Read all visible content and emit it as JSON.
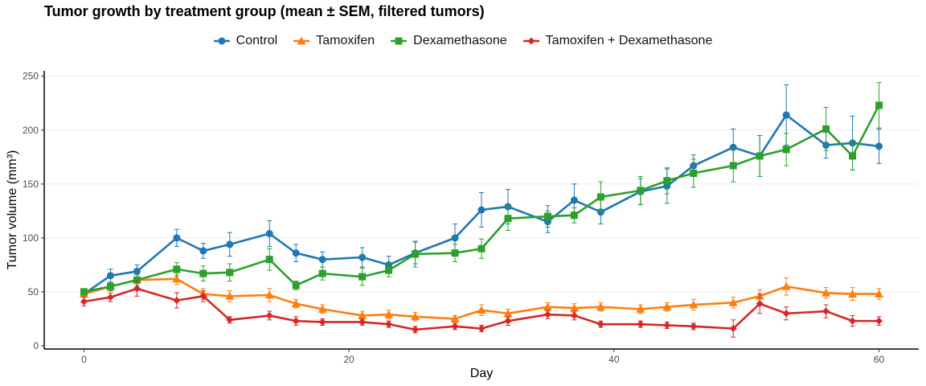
{
  "chart_data": {
    "type": "line",
    "title": "Tumor growth by treatment group (mean ± SEM, filtered tumors)",
    "xlabel": "Day",
    "ylabel": "Tumor volume (mm³)",
    "xlim": [
      -3,
      63
    ],
    "ylim": [
      -3,
      255
    ],
    "xticks": [
      0,
      20,
      40,
      60
    ],
    "yticks": [
      0,
      50,
      100,
      150,
      200,
      250
    ],
    "grid": "horizontal",
    "legend_position": "top",
    "series": [
      {
        "name": "Control",
        "color": "#1f77b4",
        "marker": "circle",
        "x": [
          0,
          2,
          4,
          7,
          9,
          11,
          14,
          16,
          18,
          21,
          23,
          25,
          28,
          30,
          32,
          35,
          37,
          39,
          42,
          44,
          46,
          49,
          51,
          53,
          56,
          58,
          60
        ],
        "y": [
          48,
          65,
          69,
          100,
          88,
          94,
          104,
          86,
          80,
          82,
          75,
          86,
          100,
          126,
          129,
          115,
          135,
          124,
          143,
          148,
          167,
          184,
          176,
          214,
          186,
          188,
          185
        ],
        "sem": [
          3,
          6,
          6,
          8,
          7,
          11,
          12,
          8,
          7,
          9,
          8,
          10,
          13,
          16,
          16,
          10,
          15,
          11,
          12,
          16,
          10,
          17,
          19,
          28,
          12,
          25,
          16
        ]
      },
      {
        "name": "Tamoxifen",
        "color": "#ff7f0e",
        "marker": "triangle",
        "x": [
          0,
          2,
          4,
          7,
          9,
          11,
          14,
          16,
          18,
          21,
          23,
          25,
          28,
          30,
          32,
          35,
          37,
          39,
          42,
          44,
          46,
          49,
          51,
          53,
          56,
          58,
          60
        ],
        "y": [
          48,
          55,
          61,
          62,
          48,
          46,
          47,
          39,
          34,
          28,
          29,
          27,
          25,
          33,
          30,
          36,
          35,
          36,
          34,
          36,
          38,
          40,
          46,
          55,
          49,
          48,
          48
        ],
        "sem": [
          3,
          4,
          5,
          5,
          5,
          5,
          6,
          4,
          4,
          4,
          4,
          4,
          3,
          5,
          4,
          4,
          4,
          4,
          4,
          4,
          5,
          5,
          6,
          8,
          5,
          6,
          5
        ]
      },
      {
        "name": "Dexamethasone",
        "color": "#2ca02c",
        "marker": "square",
        "x": [
          0,
          2,
          4,
          7,
          9,
          11,
          14,
          16,
          18,
          21,
          23,
          25,
          28,
          30,
          32,
          35,
          37,
          39,
          42,
          44,
          46,
          49,
          51,
          53,
          56,
          58,
          60
        ],
        "y": [
          50,
          55,
          61,
          71,
          67,
          68,
          80,
          56,
          67,
          64,
          70,
          85,
          86,
          90,
          118,
          120,
          121,
          138,
          144,
          153,
          160,
          167,
          176,
          182,
          201,
          176,
          223
        ],
        "sem": [
          3,
          4,
          5,
          6,
          7,
          8,
          10,
          4,
          6,
          8,
          6,
          12,
          8,
          9,
          11,
          10,
          7,
          14,
          13,
          12,
          13,
          15,
          19,
          15,
          20,
          13,
          21
        ]
      },
      {
        "name": "Tamoxifen + Dexamethasone",
        "color": "#d62728",
        "marker": "diamond",
        "x": [
          0,
          2,
          4,
          7,
          9,
          11,
          14,
          16,
          18,
          21,
          23,
          25,
          28,
          30,
          32,
          35,
          37,
          39,
          42,
          44,
          46,
          49,
          51,
          53,
          56,
          58,
          60
        ],
        "y": [
          41,
          45,
          53,
          42,
          46,
          24,
          28,
          23,
          22,
          22,
          20,
          15,
          18,
          16,
          23,
          29,
          28,
          20,
          20,
          19,
          18,
          16,
          39,
          30,
          32,
          23,
          23
        ],
        "sem": [
          4,
          4,
          7,
          7,
          5,
          3,
          4,
          4,
          3,
          3,
          3,
          3,
          3,
          3,
          4,
          4,
          4,
          3,
          3,
          3,
          3,
          8,
          9,
          6,
          6,
          5,
          4
        ]
      }
    ]
  }
}
